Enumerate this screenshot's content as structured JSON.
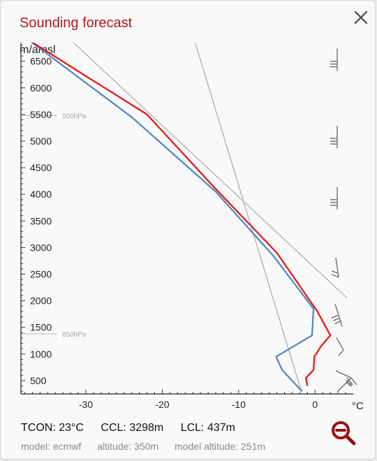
{
  "window": {
    "title": "Sounding forecast",
    "close_icon": "close-icon",
    "zoom_icon": "zoom-out-icon"
  },
  "info": {
    "tcon": "TCON: 23°C",
    "ccl": "CCL: 3298m",
    "lcl": "LCL: 437m"
  },
  "meta": {
    "model": "model: ecmwf",
    "altitude": "altitude: 350m",
    "model_altitude": "model altitude: 251m"
  },
  "colors": {
    "temperature": "#e8191b",
    "dewpoint": "#4a87c2",
    "reference": "#b4b4b4",
    "accent": "#9b0e14"
  },
  "chart_data": {
    "type": "line",
    "y_axis_label": "m/amsl",
    "x_axis_label": "°C",
    "xlim": [
      -38.5,
      5
    ],
    "ylim": [
      250,
      6850
    ],
    "x_ticks": [
      -30,
      -20,
      -10,
      0
    ],
    "y_ticks": [
      500,
      1000,
      1500,
      2000,
      2500,
      3000,
      3500,
      4000,
      4500,
      5000,
      5500,
      6000,
      6500
    ],
    "pressure_levels": [
      {
        "label": "500hPa",
        "altitude": 5480
      },
      {
        "label": "850hPa",
        "altitude": 1380
      }
    ],
    "series": [
      {
        "key": "temperature",
        "points": [
          [
            -1,
            400
          ],
          [
            -1.2,
            550
          ],
          [
            -0.2,
            700
          ],
          [
            -0.1,
            950
          ],
          [
            0.8,
            1150
          ],
          [
            2,
            1350
          ],
          [
            0.3,
            1800
          ],
          [
            -5,
            2900
          ],
          [
            -13,
            4100
          ],
          [
            -22,
            5500
          ],
          [
            -37.5,
            6900
          ]
        ]
      },
      {
        "key": "dewpoint",
        "points": [
          [
            -1.7,
            300
          ],
          [
            -4.3,
            700
          ],
          [
            -5.1,
            950
          ],
          [
            -0.4,
            1350
          ],
          [
            -0.2,
            1850
          ],
          [
            -5.5,
            2850
          ],
          [
            -13,
            4050
          ],
          [
            -24,
            5450
          ],
          [
            -37.5,
            6900
          ]
        ]
      },
      {
        "key": "reference",
        "points": [
          [
            -32,
            6900
          ],
          [
            4.2,
            2050
          ]
        ]
      },
      {
        "key": "reference",
        "points": [
          [
            -15.8,
            6900
          ],
          [
            -1.8,
            300
          ]
        ]
      }
    ],
    "wind_barbs": [
      {
        "altitude": 6500
      },
      {
        "altitude": 5050
      },
      {
        "altitude": 3900
      },
      {
        "altitude": 2600
      },
      {
        "altitude": 1650
      },
      {
        "altitude": 1100
      },
      {
        "altitude": 500
      }
    ]
  }
}
